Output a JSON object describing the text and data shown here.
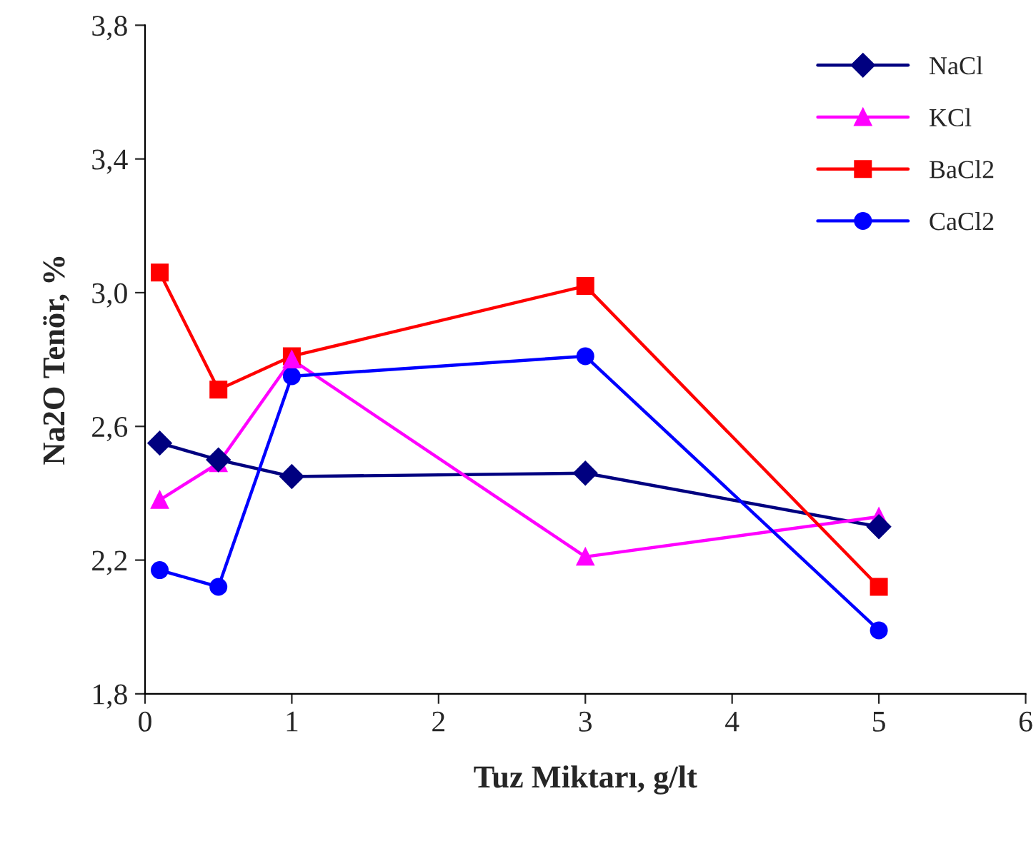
{
  "chart_data": {
    "type": "line",
    "xlabel": "Tuz Miktarı, g/lt",
    "ylabel": "Na2O Tenör, %",
    "x": [
      0.1,
      0.5,
      1,
      3,
      5
    ],
    "series": [
      {
        "name": "NaCl",
        "color": "#000080",
        "marker": "diamond",
        "values": [
          2.55,
          2.5,
          2.45,
          2.46,
          2.3
        ]
      },
      {
        "name": "KCl",
        "color": "#ff00ff",
        "marker": "triangle",
        "values": [
          2.38,
          2.49,
          2.8,
          2.21,
          2.33
        ]
      },
      {
        "name": "BaCl2",
        "color": "#ff0000",
        "marker": "square",
        "values": [
          3.06,
          2.71,
          2.81,
          3.02,
          2.12
        ]
      },
      {
        "name": "CaCl2",
        "color": "#0000ff",
        "marker": "circle",
        "values": [
          2.17,
          2.12,
          2.75,
          2.81,
          1.99
        ]
      }
    ],
    "xlim": [
      0,
      6
    ],
    "xticks": [
      0,
      1,
      2,
      3,
      4,
      5,
      6
    ],
    "ylim": [
      1.8,
      3.8
    ],
    "yticks": [
      {
        "value": 1.8,
        "label": "1,8"
      },
      {
        "value": 2.2,
        "label": "2,2"
      },
      {
        "value": 2.6,
        "label": "2,6"
      },
      {
        "value": 3.0,
        "label": "3,0"
      },
      {
        "value": 3.4,
        "label": "3,4"
      },
      {
        "value": 3.8,
        "label": "3,8"
      }
    ],
    "legend": "top right",
    "grid": false,
    "line_style": "solid"
  }
}
